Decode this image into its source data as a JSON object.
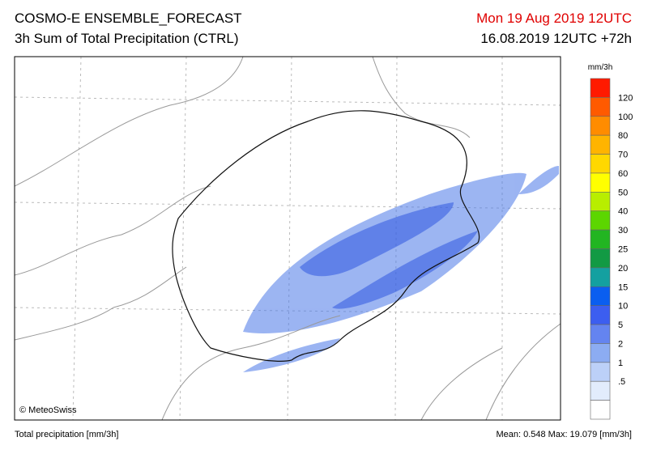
{
  "header": {
    "title": "COSMO-E ENSEMBLE_FORECAST",
    "subtitle": "3h Sum of Total Precipitation (CTRL)",
    "valid_time": "Mon 19 Aug 2019 12UTC",
    "run": "16.08.2019 12UTC +72h"
  },
  "map": {
    "credit": "© MeteoSwiss"
  },
  "legend": {
    "unit": "mm/3h",
    "labels": [
      "120",
      "100",
      "80",
      "70",
      "60",
      "50",
      "40",
      "30",
      "25",
      "20",
      "15",
      "10",
      "5",
      "2",
      "1",
      ".5"
    ],
    "colors": [
      "#ff1a00",
      "#ff5a00",
      "#ff8c00",
      "#ffb400",
      "#ffd800",
      "#ffff00",
      "#b8ee00",
      "#5cd600",
      "#22b522",
      "#129a44",
      "#14a0a0",
      "#0a5ef0",
      "#3c5ef0",
      "#6484f0",
      "#8cacf2",
      "#bcd0f8",
      "#e2ecfc",
      "#ffffff"
    ]
  },
  "footer": {
    "left": "Total precipitation [mm/3h]",
    "right": "Mean:  0.548 Max: 19.079 [mm/3h]"
  }
}
